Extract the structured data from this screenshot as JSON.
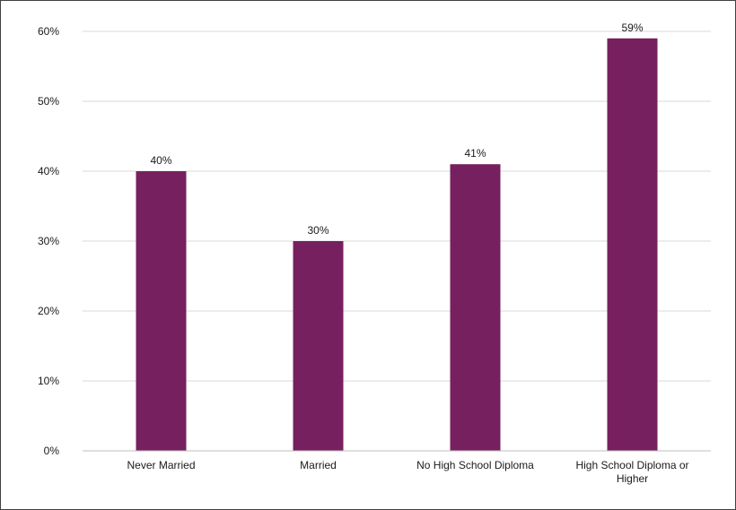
{
  "chart_data": {
    "type": "bar",
    "categories": [
      [
        "Never Married"
      ],
      [
        "Married"
      ],
      [
        "No High School Diploma"
      ],
      [
        "High School Diploma or",
        "Higher"
      ]
    ],
    "values": [
      40,
      30,
      41,
      59
    ],
    "data_labels": [
      "40%",
      "30%",
      "41%",
      "59%"
    ],
    "title": "",
    "xlabel": "",
    "ylabel": "",
    "ylim": [
      0,
      60
    ],
    "yticks": [
      0,
      10,
      20,
      30,
      40,
      50,
      60
    ],
    "ytick_labels": [
      "0%",
      "10%",
      "20%",
      "30%",
      "40%",
      "50%",
      "60%"
    ],
    "grid": true,
    "legend": "none",
    "bar_color": "#76205f",
    "grid_color": "#d9d9d9",
    "axis_color": "#bfbfbf"
  }
}
